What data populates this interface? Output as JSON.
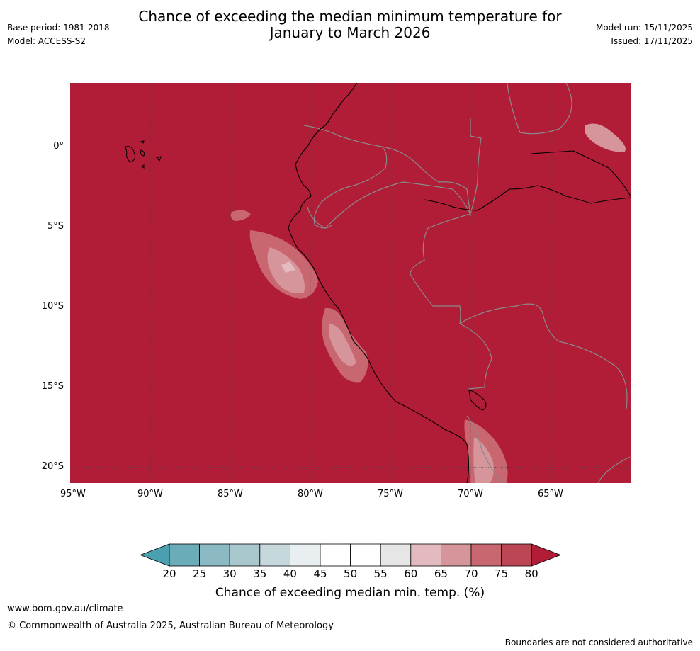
{
  "title": {
    "line1": "Chance of exceeding the median minimum temperature for",
    "line2": "January to March 2026"
  },
  "header_left": {
    "base_period": "Base period: 1981-2018",
    "model": "Model: ACCESS-S2"
  },
  "header_right": {
    "model_run": "Model run: 15/11/2025",
    "issued": "Issued: 17/11/2025"
  },
  "map": {
    "background_fill_color": "#b11c37",
    "longitude_labels": [
      "95°W",
      "90°W",
      "85°W",
      "80°W",
      "75°W",
      "70°W",
      "65°W"
    ],
    "latitude_labels": [
      "0°",
      "5°S",
      "10°S",
      "15°S",
      "20°S"
    ],
    "longitude_range": [
      -95,
      -60
    ],
    "latitude_range": [
      -21,
      4
    ]
  },
  "colorbar": {
    "title": "Chance of exceeding median min. temp. (%)",
    "ticks": [
      "20",
      "25",
      "30",
      "35",
      "40",
      "45",
      "50",
      "55",
      "60",
      "65",
      "70",
      "75",
      "80"
    ],
    "colors": [
      "#4aa0ae",
      "#6bacb9",
      "#8bbac5",
      "#a9c8ce",
      "#c7d8dc",
      "#e9eff1",
      "#ffffff",
      "#ffffff",
      "#e6e6e6",
      "#e2bac0",
      "#d6959b",
      "#c96771",
      "#bd4655",
      "#b11c37"
    ]
  },
  "footer": {
    "url": "www.bom.gov.au/climate",
    "copyright": "© Commonwealth of Australia 2025, Australian Bureau of Meteorology",
    "disclaimer": "Boundaries are not considered authoritative"
  }
}
